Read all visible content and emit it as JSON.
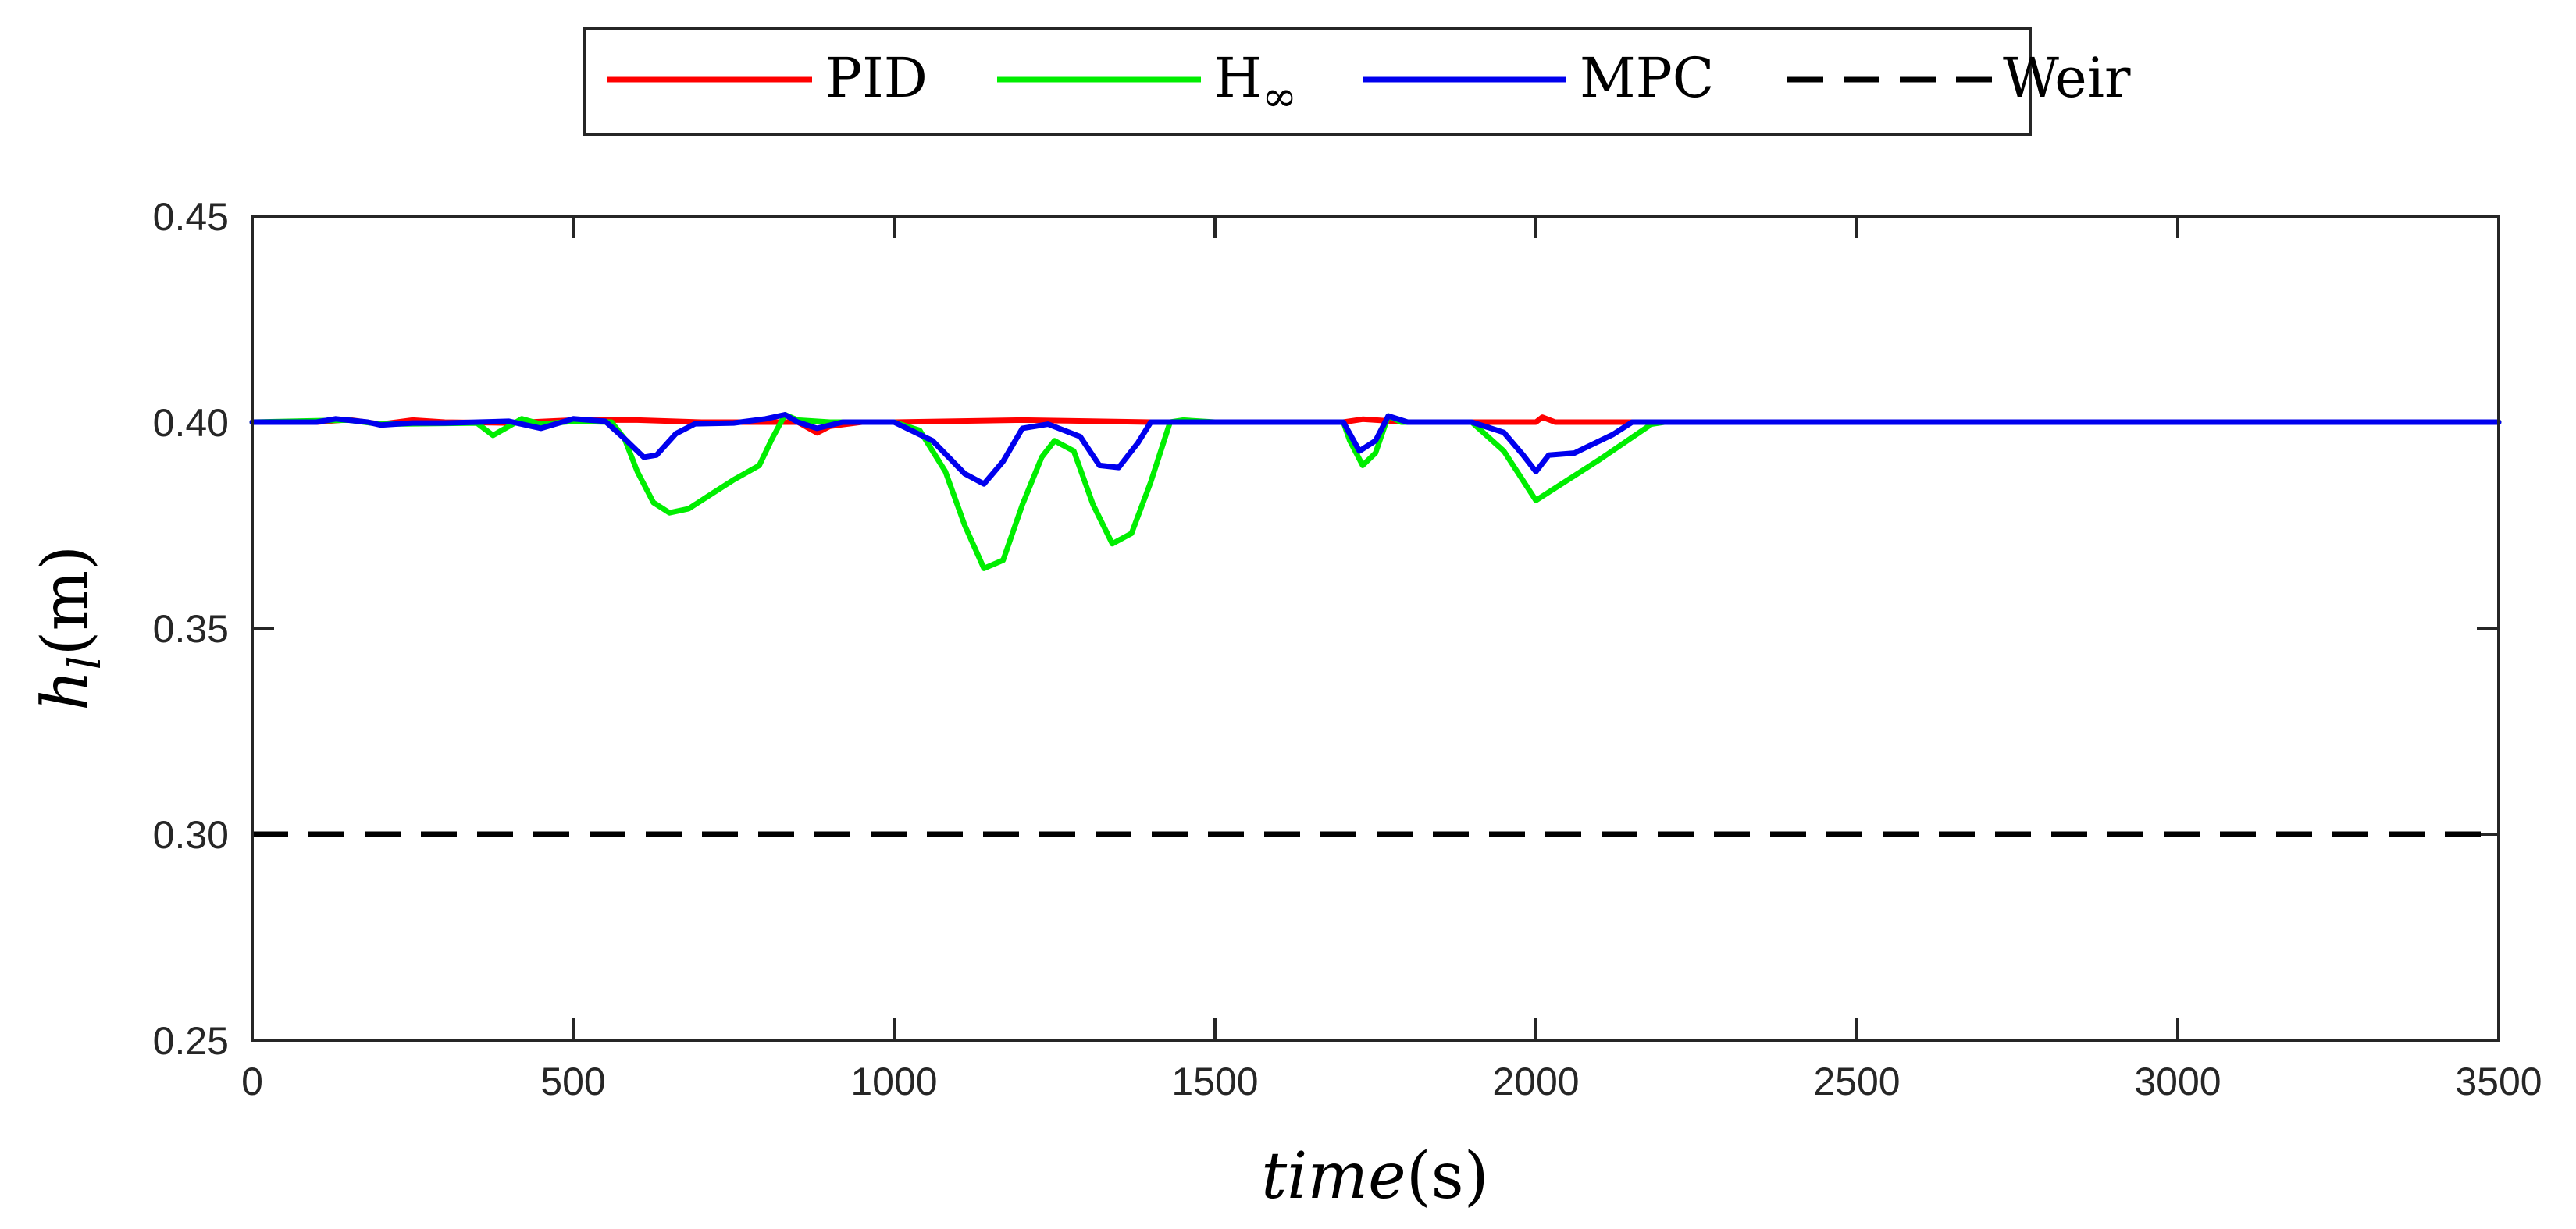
{
  "chart_data": {
    "type": "line",
    "title": "",
    "xlabel": {
      "italic": "time",
      "unit": "(s)"
    },
    "ylabel": {
      "main": "h",
      "sub": "l",
      "unit": "(m)"
    },
    "xlim": [
      0,
      3500
    ],
    "ylim": [
      0.25,
      0.45
    ],
    "xticks": [
      0,
      500,
      1000,
      1500,
      2000,
      2500,
      3000,
      3500
    ],
    "xtick_labels": [
      "0",
      "500",
      "1000",
      "1500",
      "2000",
      "2500",
      "3000",
      "3500"
    ],
    "yticks": [
      0.25,
      0.3,
      0.35,
      0.4,
      0.45
    ],
    "ytick_labels": [
      "0.25",
      "0.30",
      "0.35",
      "0.40",
      "0.45"
    ],
    "grid": false,
    "legend_position": "top-center",
    "series": [
      {
        "name": "PID",
        "color": "#ff0000",
        "dash": "solid",
        "legend": {
          "main": "PID",
          "sub": ""
        },
        "points": [
          [
            0,
            0.4
          ],
          [
            100,
            0.4
          ],
          [
            150,
            0.4006
          ],
          [
            200,
            0.3995
          ],
          [
            250,
            0.4005
          ],
          [
            300,
            0.4
          ],
          [
            400,
            0.3998
          ],
          [
            500,
            0.4005
          ],
          [
            600,
            0.4005
          ],
          [
            700,
            0.4
          ],
          [
            800,
            0.4
          ],
          [
            850,
            0.4
          ],
          [
            880,
            0.3974
          ],
          [
            900,
            0.399
          ],
          [
            950,
            0.4
          ],
          [
            1000,
            0.4
          ],
          [
            1200,
            0.4005
          ],
          [
            1400,
            0.4
          ],
          [
            1700,
            0.4
          ],
          [
            1730,
            0.4007
          ],
          [
            1800,
            0.4
          ],
          [
            2000,
            0.4
          ],
          [
            2010,
            0.4012
          ],
          [
            2030,
            0.4
          ],
          [
            3500,
            0.4
          ]
        ]
      },
      {
        "name": "H∞",
        "color": "#00ee00",
        "dash": "solid",
        "legend": {
          "main": "H",
          "sub": "∞"
        },
        "points": [
          [
            0,
            0.4
          ],
          [
            150,
            0.4005
          ],
          [
            200,
            0.3995
          ],
          [
            350,
            0.3998
          ],
          [
            375,
            0.3968
          ],
          [
            400,
            0.399
          ],
          [
            420,
            0.4008
          ],
          [
            450,
            0.3995
          ],
          [
            500,
            0.4002
          ],
          [
            560,
            0.4
          ],
          [
            580,
            0.396
          ],
          [
            600,
            0.388
          ],
          [
            625,
            0.3805
          ],
          [
            650,
            0.378
          ],
          [
            680,
            0.379
          ],
          [
            710,
            0.382
          ],
          [
            750,
            0.386
          ],
          [
            790,
            0.3895
          ],
          [
            810,
            0.396
          ],
          [
            830,
            0.4018
          ],
          [
            850,
            0.4005
          ],
          [
            900,
            0.4
          ],
          [
            1000,
            0.4
          ],
          [
            1040,
            0.398
          ],
          [
            1080,
            0.388
          ],
          [
            1110,
            0.375
          ],
          [
            1140,
            0.3645
          ],
          [
            1170,
            0.3665
          ],
          [
            1200,
            0.38
          ],
          [
            1230,
            0.3915
          ],
          [
            1250,
            0.3955
          ],
          [
            1280,
            0.393
          ],
          [
            1310,
            0.38
          ],
          [
            1340,
            0.3705
          ],
          [
            1370,
            0.373
          ],
          [
            1400,
            0.3855
          ],
          [
            1430,
            0.4
          ],
          [
            1450,
            0.4005
          ],
          [
            1500,
            0.4
          ],
          [
            1700,
            0.4
          ],
          [
            1710,
            0.3955
          ],
          [
            1730,
            0.3895
          ],
          [
            1750,
            0.3925
          ],
          [
            1770,
            0.4015
          ],
          [
            1790,
            0.4
          ],
          [
            1900,
            0.4
          ],
          [
            1950,
            0.393
          ],
          [
            2000,
            0.381
          ],
          [
            2100,
            0.391
          ],
          [
            2180,
            0.3995
          ],
          [
            2200,
            0.4
          ],
          [
            3500,
            0.4
          ]
        ]
      },
      {
        "name": "MPC",
        "color": "#0000ee",
        "dash": "solid",
        "legend": {
          "main": "MPC",
          "sub": ""
        },
        "points": [
          [
            0,
            0.4
          ],
          [
            100,
            0.4
          ],
          [
            130,
            0.4008
          ],
          [
            180,
            0.4
          ],
          [
            200,
            0.3993
          ],
          [
            250,
            0.3998
          ],
          [
            300,
            0.3998
          ],
          [
            400,
            0.4002
          ],
          [
            450,
            0.3985
          ],
          [
            500,
            0.4008
          ],
          [
            550,
            0.4002
          ],
          [
            580,
            0.396
          ],
          [
            610,
            0.3915
          ],
          [
            630,
            0.392
          ],
          [
            660,
            0.3972
          ],
          [
            690,
            0.3996
          ],
          [
            750,
            0.3998
          ],
          [
            800,
            0.4008
          ],
          [
            830,
            0.4018
          ],
          [
            850,
            0.4
          ],
          [
            880,
            0.3985
          ],
          [
            920,
            0.4
          ],
          [
            1000,
            0.4
          ],
          [
            1060,
            0.3955
          ],
          [
            1110,
            0.3875
          ],
          [
            1140,
            0.385
          ],
          [
            1170,
            0.3905
          ],
          [
            1200,
            0.3985
          ],
          [
            1240,
            0.3995
          ],
          [
            1290,
            0.3965
          ],
          [
            1320,
            0.3895
          ],
          [
            1350,
            0.389
          ],
          [
            1380,
            0.395
          ],
          [
            1400,
            0.4
          ],
          [
            1500,
            0.4
          ],
          [
            1700,
            0.4
          ],
          [
            1725,
            0.393
          ],
          [
            1750,
            0.3955
          ],
          [
            1770,
            0.4015
          ],
          [
            1800,
            0.4
          ],
          [
            1900,
            0.4
          ],
          [
            1950,
            0.3975
          ],
          [
            1980,
            0.392
          ],
          [
            2000,
            0.388
          ],
          [
            2020,
            0.392
          ],
          [
            2060,
            0.3925
          ],
          [
            2120,
            0.397
          ],
          [
            2150,
            0.4
          ],
          [
            3500,
            0.4
          ]
        ]
      },
      {
        "name": "Weir",
        "color": "#000000",
        "dash": "dashed",
        "legend": {
          "main": "Weir",
          "sub": ""
        },
        "points": [
          [
            0,
            0.3
          ],
          [
            3500,
            0.3
          ]
        ]
      }
    ]
  }
}
